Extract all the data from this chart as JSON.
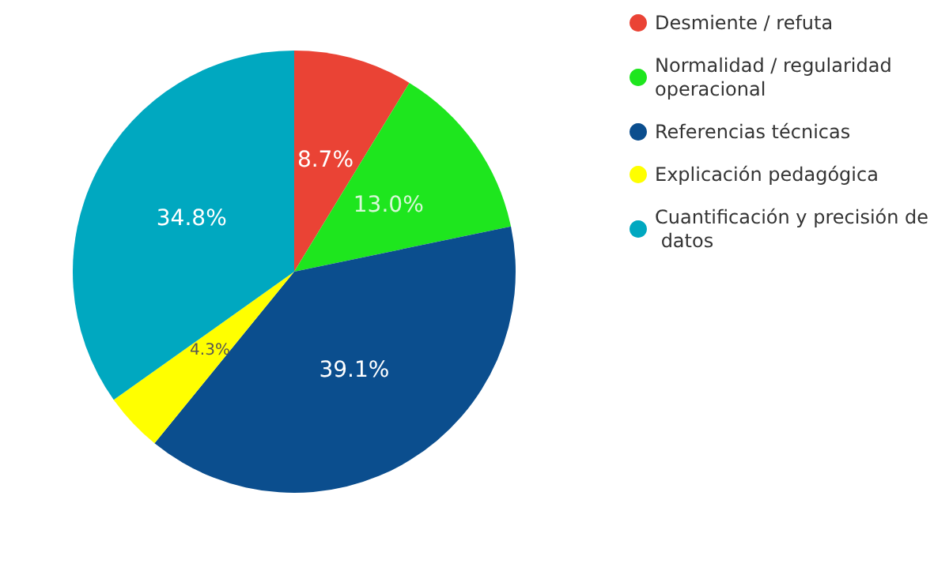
{
  "chart_data": {
    "type": "pie",
    "categories": [
      "Desmiente / refuta",
      "Normalidad / regularidad operacional",
      "Referencias técnicas",
      "Explicación pedagógica",
      "Cuantificación y precisión de datos"
    ],
    "values": [
      8.7,
      13.0,
      39.1,
      4.3,
      34.8
    ],
    "colors": [
      "#ea4335",
      "#1ee61e",
      "#0b4e8e",
      "#ffff00",
      "#00a8c0"
    ],
    "value_labels": [
      "8.7%",
      "13.0%",
      "39.1%",
      "4.3%",
      "34.8%"
    ],
    "legend": "top right"
  }
}
